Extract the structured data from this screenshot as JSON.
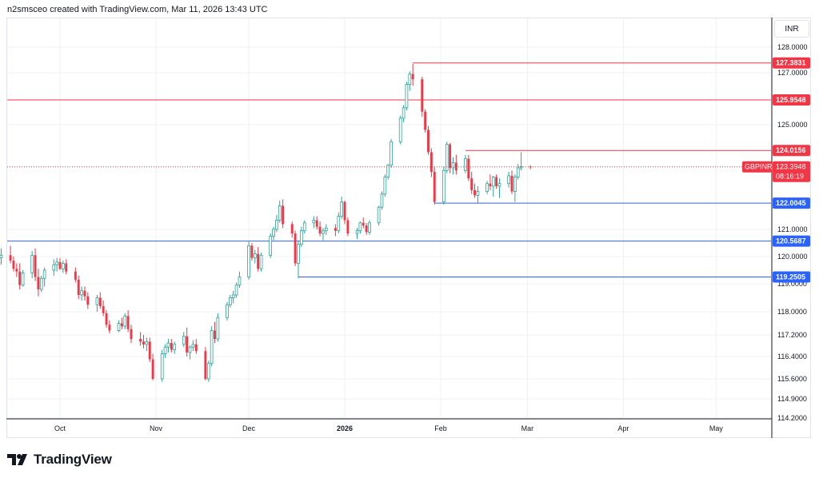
{
  "header": {
    "caption": "n2smsceo created with TradingView.com, Mar 11, 2026 13:43 UTC"
  },
  "brand": {
    "name": "TradingView",
    "logo_icon": "tradingview-logo-icon"
  },
  "currency": "INR",
  "symbol": {
    "name": "GBPINR",
    "last_price": "123.3948",
    "countdown": "08:16:19"
  },
  "colors": {
    "up": "#26a69a",
    "down": "#f23645",
    "support": "#2962ff",
    "resistance": "#f23645",
    "grid": "#eef0f4"
  },
  "chart_data": {
    "type": "candlestick",
    "title": "",
    "x_tick_labels": [
      "Oct",
      "Nov",
      "Dec",
      "2026",
      "Feb",
      "Mar",
      "Apr",
      "May"
    ],
    "y_tick_labels": [
      "128.0000",
      "127.0000",
      "125.0000",
      "121.0000",
      "120.0000",
      "119.0000",
      "118.0000",
      "117.2000",
      "116.4000",
      "115.6000",
      "114.9000",
      "114.2000"
    ],
    "horizontal_levels": [
      {
        "price": 127.3831,
        "label": "127.3831",
        "kind": "resistance",
        "start": "2026-01-23"
      },
      {
        "price": 125.9548,
        "label": "125.9548",
        "kind": "resistance",
        "start": "2025-09-11"
      },
      {
        "price": 124.0156,
        "label": "124.0156",
        "kind": "resistance",
        "start": "2026-02-09"
      },
      {
        "price": 122.0045,
        "label": "122.0045",
        "kind": "support",
        "start": "2026-01-30"
      },
      {
        "price": 120.5687,
        "label": "120.5687",
        "kind": "support",
        "start": "2025-09-11"
      },
      {
        "price": 119.2505,
        "label": "119.2505",
        "kind": "support",
        "start": "2025-12-17"
      }
    ],
    "candles": [
      [
        119.75,
        120.1,
        119.55,
        119.95
      ],
      [
        119.95,
        120.3,
        119.7,
        120.05
      ],
      [
        120.05,
        120.4,
        119.75,
        119.85
      ],
      [
        119.85,
        120.0,
        119.45,
        119.55
      ],
      [
        119.55,
        119.75,
        119.25,
        119.45
      ],
      [
        119.45,
        119.75,
        118.8,
        118.95
      ],
      [
        118.95,
        119.5,
        118.9,
        119.4
      ],
      [
        119.4,
        120.2,
        119.2,
        120.05
      ],
      [
        120.05,
        120.3,
        119.1,
        119.25
      ],
      [
        119.25,
        119.55,
        118.55,
        118.8
      ],
      [
        118.8,
        119.3,
        118.7,
        119.2
      ],
      [
        119.2,
        119.6,
        118.9,
        119.5
      ],
      [
        119.5,
        119.9,
        119.3,
        119.7
      ],
      [
        119.7,
        119.95,
        119.45,
        119.8
      ],
      [
        119.8,
        119.95,
        119.5,
        119.55
      ],
      [
        119.55,
        119.85,
        119.4,
        119.75
      ],
      [
        119.75,
        119.9,
        119.35,
        119.45
      ],
      [
        119.45,
        119.6,
        119.05,
        119.15
      ],
      [
        119.15,
        119.3,
        118.45,
        118.6
      ],
      [
        118.6,
        118.9,
        118.4,
        118.75
      ],
      [
        118.75,
        118.9,
        118.4,
        118.55
      ],
      [
        118.55,
        118.7,
        118.1,
        118.25
      ],
      [
        118.25,
        118.6,
        118.0,
        118.5
      ],
      [
        118.5,
        118.7,
        118.1,
        118.2
      ],
      [
        118.2,
        118.4,
        117.85,
        117.95
      ],
      [
        117.95,
        118.05,
        117.45,
        117.55
      ],
      [
        117.55,
        117.7,
        117.25,
        117.35
      ],
      [
        117.35,
        117.7,
        117.3,
        117.6
      ],
      [
        117.6,
        117.8,
        117.4,
        117.5
      ],
      [
        117.5,
        117.95,
        117.4,
        117.85
      ],
      [
        117.85,
        118.05,
        117.3,
        117.4
      ],
      [
        117.4,
        117.55,
        116.9,
        117.05
      ],
      [
        117.05,
        117.3,
        116.8,
        116.95
      ],
      [
        116.95,
        117.2,
        116.7,
        116.85
      ],
      [
        116.85,
        117.1,
        116.6,
        116.95
      ],
      [
        116.95,
        117.1,
        116.2,
        116.3
      ],
      [
        116.3,
        116.5,
        115.55,
        115.6
      ],
      [
        115.6,
        116.65,
        115.5,
        116.5
      ],
      [
        116.5,
        116.85,
        116.35,
        116.75
      ],
      [
        116.75,
        117.05,
        116.55,
        116.9
      ],
      [
        116.9,
        117.05,
        116.55,
        116.65
      ],
      [
        116.65,
        116.95,
        116.5,
        116.85
      ],
      [
        116.85,
        117.3,
        116.75,
        117.15
      ],
      [
        117.15,
        117.45,
        116.4,
        116.55
      ],
      [
        116.55,
        116.8,
        116.3,
        116.75
      ],
      [
        116.75,
        117.0,
        116.6,
        116.85
      ],
      [
        116.85,
        117.05,
        116.5,
        116.6
      ],
      [
        116.6,
        116.75,
        115.55,
        115.6
      ],
      [
        115.6,
        116.25,
        115.5,
        116.15
      ],
      [
        116.15,
        117.5,
        116.05,
        117.35
      ],
      [
        117.35,
        117.65,
        116.9,
        117.05
      ],
      [
        117.05,
        117.95,
        116.95,
        117.8
      ],
      [
        117.8,
        118.35,
        117.7,
        118.25
      ],
      [
        118.25,
        118.6,
        118.15,
        118.5
      ],
      [
        118.5,
        118.75,
        118.3,
        118.6
      ],
      [
        118.6,
        119.05,
        118.5,
        118.95
      ],
      [
        118.95,
        119.45,
        118.85,
        119.25
      ],
      [
        119.25,
        120.55,
        119.15,
        120.4
      ],
      [
        120.4,
        120.5,
        119.85,
        119.95
      ],
      [
        119.95,
        120.25,
        119.75,
        120.1
      ],
      [
        120.1,
        120.35,
        119.45,
        119.55
      ],
      [
        119.55,
        120.15,
        119.45,
        120.05
      ],
      [
        120.05,
        120.85,
        119.95,
        120.75
      ],
      [
        120.75,
        121.1,
        120.6,
        121.0
      ],
      [
        121.0,
        121.55,
        120.9,
        121.35
      ],
      [
        121.35,
        122.1,
        121.25,
        121.9
      ],
      [
        121.9,
        122.15,
        121.05,
        121.2
      ],
      [
        121.2,
        121.3,
        120.7,
        120.85
      ],
      [
        120.85,
        120.95,
        119.65,
        119.75
      ],
      [
        119.75,
        120.6,
        119.2,
        120.45
      ],
      [
        120.45,
        121.1,
        120.35,
        120.95
      ],
      [
        120.95,
        121.35,
        120.85,
        121.25
      ],
      [
        121.25,
        121.5,
        121.05,
        121.35
      ],
      [
        121.35,
        121.5,
        121.0,
        121.1
      ],
      [
        121.1,
        121.3,
        120.75,
        120.85
      ],
      [
        120.85,
        121.05,
        120.6,
        120.95
      ],
      [
        120.95,
        121.2,
        120.8,
        121.05
      ],
      [
        121.05,
        121.2,
        120.75,
        120.95
      ],
      [
        120.95,
        121.65,
        120.85,
        121.5
      ],
      [
        121.5,
        122.25,
        121.4,
        122.05
      ],
      [
        122.05,
        122.1,
        121.2,
        121.35
      ],
      [
        121.35,
        121.45,
        120.75,
        120.85
      ],
      [
        120.85,
        121.05,
        120.65,
        120.95
      ],
      [
        120.95,
        121.3,
        120.85,
        121.25
      ],
      [
        121.25,
        121.45,
        121.05,
        121.15
      ],
      [
        121.15,
        121.25,
        120.8,
        120.9
      ],
      [
        120.9,
        121.35,
        120.8,
        121.25
      ],
      [
        121.25,
        121.9,
        121.15,
        121.85
      ],
      [
        121.85,
        122.45,
        121.75,
        122.35
      ],
      [
        122.35,
        123.1,
        122.25,
        123.0
      ],
      [
        123.0,
        123.5,
        122.9,
        123.45
      ],
      [
        123.45,
        124.45,
        123.35,
        124.35
      ],
      [
        124.35,
        125.35,
        124.25,
        125.25
      ],
      [
        125.25,
        125.75,
        125.1,
        125.65
      ],
      [
        125.65,
        126.65,
        125.55,
        126.55
      ],
      [
        126.55,
        127.05,
        126.3,
        126.95
      ],
      [
        126.95,
        127.35,
        126.5,
        126.75
      ],
      [
        126.75,
        126.85,
        125.3,
        125.5
      ],
      [
        125.5,
        125.6,
        124.7,
        124.8
      ],
      [
        124.8,
        124.95,
        123.85,
        123.95
      ],
      [
        123.95,
        124.1,
        123.0,
        123.2
      ],
      [
        123.2,
        123.4,
        121.95,
        122.05
      ],
      [
        122.05,
        123.4,
        121.95,
        123.25
      ],
      [
        123.25,
        124.35,
        123.15,
        124.25
      ],
      [
        124.25,
        124.3,
        123.15,
        123.35
      ],
      [
        123.35,
        123.75,
        123.1,
        123.55
      ],
      [
        123.55,
        123.85,
        123.1,
        123.25
      ],
      [
        123.25,
        123.85,
        123.15,
        123.7
      ],
      [
        123.7,
        123.85,
        122.85,
        122.95
      ],
      [
        122.95,
        123.2,
        122.35,
        122.5
      ],
      [
        122.5,
        122.75,
        122.2,
        122.3
      ],
      [
        122.3,
        122.65,
        122.0,
        122.45
      ],
      [
        122.45,
        122.85,
        122.35,
        122.75
      ],
      [
        122.75,
        123.1,
        122.5,
        122.65
      ],
      [
        122.65,
        123.05,
        122.25,
        123.0
      ],
      [
        123.0,
        123.1,
        122.55,
        122.65
      ],
      [
        122.65,
        122.95,
        122.2,
        122.75
      ],
      [
        122.75,
        123.2,
        122.6,
        123.05
      ],
      [
        123.05,
        123.25,
        122.35,
        122.45
      ],
      [
        122.45,
        123.1,
        122.05,
        123.0
      ],
      [
        123.0,
        123.5,
        122.9,
        123.35
      ],
      [
        123.35,
        123.95,
        123.25,
        123.4
      ],
      [
        123.4,
        123.45,
        123.3,
        123.39
      ]
    ]
  }
}
